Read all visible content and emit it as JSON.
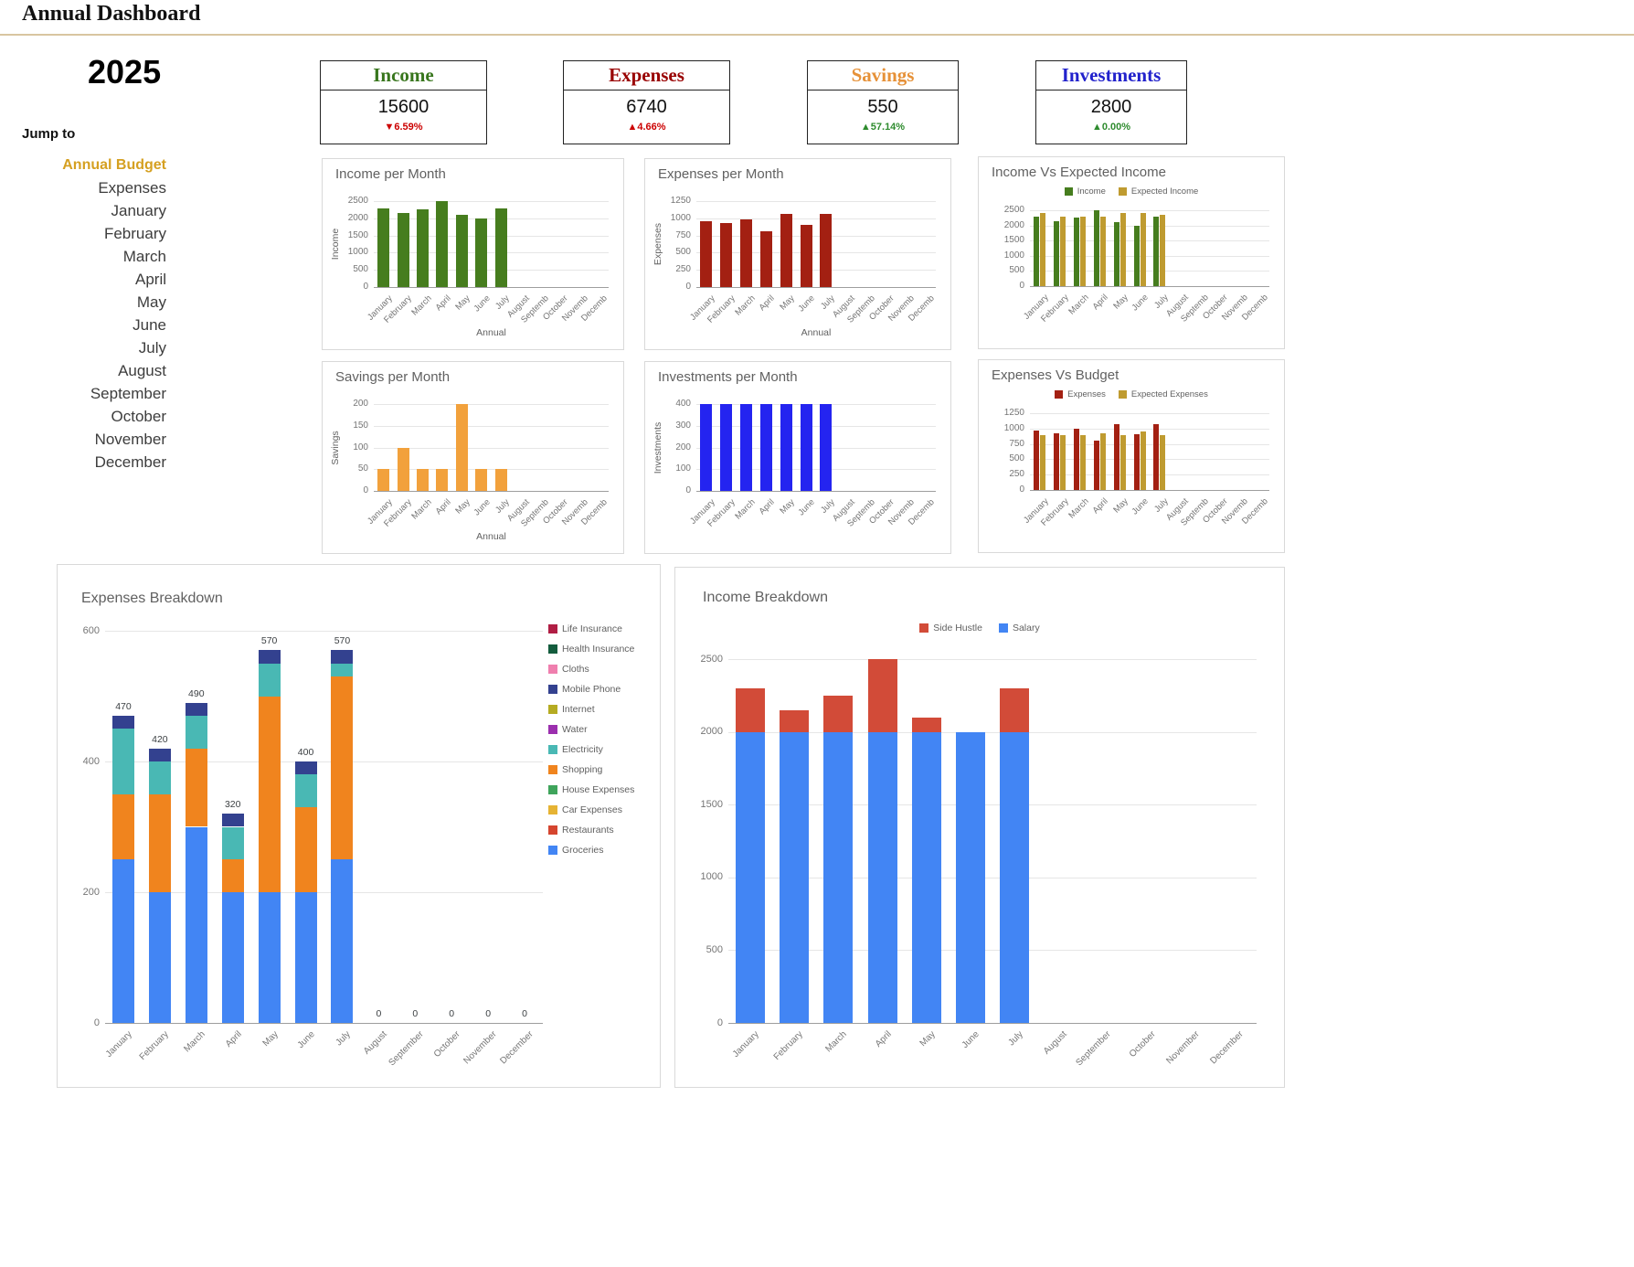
{
  "page": {
    "title": "Annual Dashboard",
    "divider_color": "#d8c5a0"
  },
  "sidebar": {
    "year": "2025",
    "jump_to_label": "Jump to",
    "active_color": "#d5a021",
    "links": [
      "Annual Budget",
      "Expenses",
      "January",
      "February",
      "March",
      "April",
      "May",
      "June",
      "July",
      "August",
      "September",
      "October",
      "November",
      "December"
    ]
  },
  "cards": [
    {
      "title": "Income",
      "title_color": "#38761d",
      "value": "15600",
      "change": "▼6.59%",
      "change_color": "#cc0000"
    },
    {
      "title": "Expenses",
      "title_color": "#990000",
      "value": "6740",
      "change": "▲4.66%",
      "change_color": "#cc0000"
    },
    {
      "title": "Savings",
      "title_color": "#e69138",
      "value": "550",
      "change": "▲57.14%",
      "change_color": "#2e8b2e"
    },
    {
      "title": "Investments",
      "title_color": "#2222cc",
      "value": "2800",
      "change": "▲0.00%",
      "change_color": "#2e8b2e"
    }
  ],
  "chart_data": [
    {
      "id": "income_per_month",
      "type": "bar",
      "title": "Income per Month",
      "xlabel": "Annual",
      "ylabel": "Income",
      "legend_position": null,
      "categories": [
        "January",
        "February",
        "March",
        "April",
        "May",
        "June",
        "July",
        "August",
        "Septemb",
        "October",
        "Novemb",
        "Decemb"
      ],
      "yticks": [
        0,
        500,
        1000,
        1500,
        2000,
        2500
      ],
      "ylim": [
        0,
        2500
      ],
      "grid": true,
      "show_totals": false,
      "series": [
        {
          "name": "Income",
          "color": "#467d1e",
          "values": [
            2300,
            2150,
            2250,
            2500,
            2100,
            2000,
            2300,
            0,
            0,
            0,
            0,
            0
          ]
        }
      ]
    },
    {
      "id": "expenses_per_month",
      "type": "bar",
      "title": "Expenses per Month",
      "xlabel": "Annual",
      "ylabel": "Expenses",
      "legend_position": null,
      "categories": [
        "January",
        "February",
        "March",
        "April",
        "May",
        "June",
        "July",
        "August",
        "Septemb",
        "October",
        "Novemb",
        "Decemb"
      ],
      "yticks": [
        0,
        250,
        500,
        750,
        1000,
        1250
      ],
      "ylim": [
        0,
        1250
      ],
      "grid": true,
      "show_totals": false,
      "series": [
        {
          "name": "Expenses",
          "color": "#a32012",
          "values": [
            960,
            930,
            990,
            810,
            1070,
            910,
            1070,
            0,
            0,
            0,
            0,
            0
          ]
        }
      ]
    },
    {
      "id": "income_vs_expected_income",
      "type": "bar",
      "title": "Income Vs Expected Income",
      "xlabel": null,
      "ylabel": null,
      "legend_position": "top",
      "categories": [
        "January",
        "February",
        "March",
        "April",
        "May",
        "June",
        "July",
        "August",
        "Septemb",
        "October",
        "Novemb",
        "Decemb"
      ],
      "yticks": [
        0,
        500,
        1000,
        1500,
        2000,
        2500
      ],
      "ylim": [
        0,
        2500
      ],
      "grid": true,
      "show_totals": false,
      "series": [
        {
          "name": "Income",
          "color": "#467d1e",
          "values": [
            2300,
            2150,
            2250,
            2500,
            2100,
            2000,
            2300,
            0,
            0,
            0,
            0,
            0
          ]
        },
        {
          "name": "Expected Income",
          "color": "#bf9b30",
          "values": [
            2400,
            2300,
            2300,
            2300,
            2400,
            2400,
            2350,
            0,
            0,
            0,
            0,
            0
          ]
        }
      ]
    },
    {
      "id": "savings_per_month",
      "type": "bar",
      "title": "Savings per Month",
      "xlabel": "Annual",
      "ylabel": "Savings",
      "legend_position": null,
      "categories": [
        "January",
        "February",
        "March",
        "April",
        "May",
        "June",
        "July",
        "August",
        "Septemb",
        "October",
        "Novemb",
        "Decemb"
      ],
      "yticks": [
        0,
        50,
        100,
        150,
        200
      ],
      "ylim": [
        0,
        200
      ],
      "grid": true,
      "show_totals": false,
      "series": [
        {
          "name": "Savings",
          "color": "#f2a13c",
          "values": [
            50,
            100,
            50,
            50,
            200,
            50,
            50,
            0,
            0,
            0,
            0,
            0
          ]
        }
      ]
    },
    {
      "id": "investments_per_month",
      "type": "bar",
      "title": "Investments per Month",
      "xlabel": null,
      "ylabel": "Investments",
      "legend_position": null,
      "categories": [
        "January",
        "February",
        "March",
        "April",
        "May",
        "June",
        "July",
        "August",
        "Septemb",
        "October",
        "Novemb",
        "Decemb"
      ],
      "yticks": [
        0,
        100,
        200,
        300,
        400
      ],
      "ylim": [
        0,
        400
      ],
      "grid": true,
      "show_totals": false,
      "series": [
        {
          "name": "Investments",
          "color": "#2424f0",
          "values": [
            400,
            400,
            400,
            400,
            400,
            400,
            400,
            0,
            0,
            0,
            0,
            0
          ]
        }
      ]
    },
    {
      "id": "expenses_vs_budget",
      "type": "bar",
      "title": "Expenses Vs Budget",
      "xlabel": null,
      "ylabel": null,
      "legend_position": "top",
      "categories": [
        "January",
        "February",
        "March",
        "April",
        "May",
        "June",
        "July",
        "August",
        "Septemb",
        "October",
        "Novemb",
        "Decemb"
      ],
      "yticks": [
        0,
        250,
        500,
        750,
        1000,
        1250
      ],
      "ylim": [
        0,
        1250
      ],
      "grid": true,
      "show_totals": false,
      "series": [
        {
          "name": "Expenses",
          "color": "#a32012",
          "values": [
            960,
            930,
            990,
            810,
            1070,
            910,
            1070,
            0,
            0,
            0,
            0,
            0
          ]
        },
        {
          "name": "Expected Expenses",
          "color": "#bf9b30",
          "values": [
            900,
            900,
            900,
            920,
            900,
            950,
            900,
            0,
            0,
            0,
            0,
            0
          ]
        }
      ]
    },
    {
      "id": "expenses_breakdown",
      "type": "stacked-bar",
      "title": "Expenses Breakdown",
      "xlabel": null,
      "ylabel": null,
      "legend_position": "right",
      "categories": [
        "January",
        "February",
        "March",
        "April",
        "May",
        "June",
        "July",
        "August",
        "September",
        "October",
        "November",
        "December"
      ],
      "yticks": [
        0,
        200,
        400,
        600
      ],
      "ylim": [
        0,
        600
      ],
      "grid": true,
      "show_totals": true,
      "totals": [
        470,
        420,
        490,
        320,
        570,
        400,
        570,
        0,
        0,
        0,
        0,
        0
      ],
      "series": [
        {
          "name": "Groceries",
          "color": "#4285f4",
          "values": [
            250,
            200,
            300,
            200,
            200,
            200,
            250,
            0,
            0,
            0,
            0,
            0
          ]
        },
        {
          "name": "Restaurants",
          "color": "#d5452f",
          "values": [
            0,
            0,
            0,
            0,
            0,
            0,
            0,
            0,
            0,
            0,
            0,
            0
          ]
        },
        {
          "name": "Car Expenses",
          "color": "#e6b333",
          "values": [
            0,
            0,
            0,
            0,
            0,
            0,
            0,
            0,
            0,
            0,
            0,
            0
          ]
        },
        {
          "name": "House Expenses",
          "color": "#3fa45b",
          "values": [
            0,
            0,
            0,
            0,
            0,
            0,
            0,
            0,
            0,
            0,
            0,
            0
          ]
        },
        {
          "name": "Shopping",
          "color": "#f0841e",
          "values": [
            100,
            150,
            120,
            50,
            300,
            130,
            280,
            0,
            0,
            0,
            0,
            0
          ]
        },
        {
          "name": "Electricity",
          "color": "#49b8b4",
          "values": [
            100,
            50,
            50,
            50,
            50,
            50,
            20,
            0,
            0,
            0,
            0,
            0
          ]
        },
        {
          "name": "Water",
          "color": "#9b2fae",
          "values": [
            0,
            0,
            0,
            0,
            0,
            0,
            0,
            0,
            0,
            0,
            0,
            0
          ]
        },
        {
          "name": "Internet",
          "color": "#b5ab22",
          "values": [
            0,
            0,
            0,
            0,
            0,
            0,
            0,
            0,
            0,
            0,
            0,
            0
          ]
        },
        {
          "name": "Mobile Phone",
          "color": "#33418f",
          "values": [
            20,
            20,
            20,
            20,
            20,
            20,
            20,
            0,
            0,
            0,
            0,
            0
          ]
        },
        {
          "name": "Cloths",
          "color": "#ef7fae",
          "values": [
            0,
            0,
            0,
            0,
            0,
            0,
            0,
            0,
            0,
            0,
            0,
            0
          ]
        },
        {
          "name": "Health Insurance",
          "color": "#135c3d",
          "values": [
            0,
            0,
            0,
            0,
            0,
            0,
            0,
            0,
            0,
            0,
            0,
            0
          ]
        },
        {
          "name": "Life Insurance",
          "color": "#b01e44",
          "values": [
            0,
            0,
            0,
            0,
            0,
            0,
            0,
            0,
            0,
            0,
            0,
            0
          ]
        }
      ]
    },
    {
      "id": "income_breakdown",
      "type": "stacked-bar",
      "title": "Income Breakdown",
      "xlabel": null,
      "ylabel": null,
      "legend_position": "top",
      "categories": [
        "January",
        "February",
        "March",
        "April",
        "May",
        "June",
        "July",
        "August",
        "September",
        "October",
        "November",
        "December"
      ],
      "yticks": [
        0,
        500,
        1000,
        1500,
        2000,
        2500
      ],
      "ylim": [
        0,
        2500
      ],
      "grid": true,
      "show_totals": false,
      "series": [
        {
          "name": "Salary",
          "color": "#4285f4",
          "values": [
            2000,
            2000,
            2000,
            2000,
            2000,
            2000,
            2000,
            0,
            0,
            0,
            0,
            0
          ]
        },
        {
          "name": "Side Hustle",
          "color": "#d24b38",
          "values": [
            300,
            150,
            250,
            500,
            100,
            0,
            300,
            0,
            0,
            0,
            0,
            0
          ]
        }
      ]
    }
  ]
}
